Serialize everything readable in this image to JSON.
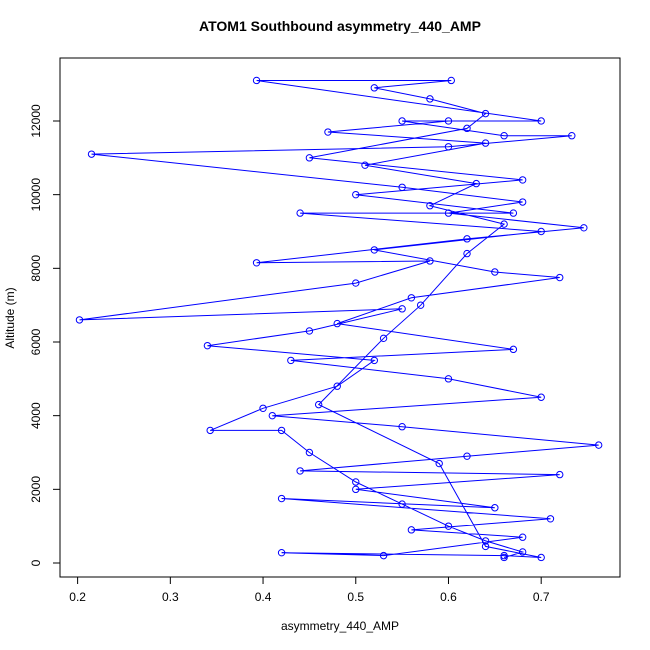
{
  "chart_data": {
    "type": "line",
    "title": "ATOM1 Southbound asymmetry_440_AMP",
    "x_label": "asymmetry_440_AMP",
    "y_label": "Altitude (m)",
    "xlim": [
      0.181,
      0.785
    ],
    "ylim": [
      -380,
      13710
    ],
    "xticks": [
      0.2,
      0.3,
      0.4,
      0.5,
      0.6,
      0.7
    ],
    "yticks": [
      0,
      2000,
      4000,
      6000,
      8000,
      10000,
      12000
    ],
    "series": [
      {
        "color": "#0000ff",
        "x": [
          0.66,
          0.68,
          0.64,
          0.6,
          0.55,
          0.5,
          0.45,
          0.42,
          0.343,
          0.4,
          0.48,
          0.52,
          0.34,
          0.45,
          0.55,
          0.202,
          0.5,
          0.58,
          0.393,
          0.62,
          0.746,
          0.6,
          0.68,
          0.55,
          0.215,
          0.6,
          0.733,
          0.66,
          0.55,
          0.7,
          0.393,
          0.603,
          0.52,
          0.58,
          0.64,
          0.62,
          0.45,
          0.68,
          0.5,
          0.67,
          0.44,
          0.7,
          0.52,
          0.65,
          0.72,
          0.56,
          0.48,
          0.67,
          0.43,
          0.6,
          0.7,
          0.41,
          0.55,
          0.762,
          0.62,
          0.44,
          0.72,
          0.5,
          0.65,
          0.42,
          0.71,
          0.56,
          0.68,
          0.53,
          0.42,
          0.66,
          0.7,
          0.64,
          0.59,
          0.46,
          0.53,
          0.57,
          0.62,
          0.66,
          0.58,
          0.63,
          0.51,
          0.64,
          0.47,
          0.6
        ],
        "values": [
          150,
          300,
          600,
          1000,
          1600,
          2200,
          3000,
          3600,
          3600,
          4200,
          4800,
          5500,
          5900,
          6300,
          6900,
          6600,
          7600,
          8200,
          8150,
          8800,
          9100,
          9500,
          9800,
          10200,
          11100,
          11300,
          11600,
          11600,
          12000,
          12000,
          13100,
          13100,
          12900,
          12600,
          12200,
          11800,
          11000,
          10400,
          10000,
          9500,
          9500,
          9000,
          8500,
          7900,
          7750,
          7200,
          6500,
          5800,
          5500,
          5000,
          4500,
          4000,
          3700,
          3200,
          2900,
          2500,
          2400,
          2000,
          1500,
          1750,
          1200,
          900,
          700,
          200,
          280,
          200,
          150,
          450,
          2700,
          4300,
          6100,
          7000,
          8400,
          9200,
          9700,
          10300,
          10800,
          11400,
          11700,
          12000
        ]
      }
    ]
  }
}
